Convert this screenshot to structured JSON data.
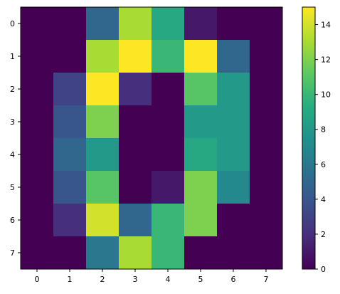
{
  "chart_data": {
    "type": "heatmap",
    "title": "",
    "xlabel": "",
    "ylabel": "",
    "x": [
      0,
      1,
      2,
      3,
      4,
      5,
      6,
      7
    ],
    "y": [
      0,
      1,
      2,
      3,
      4,
      5,
      6,
      7
    ],
    "values": [
      [
        0,
        0,
        5,
        13,
        9,
        1,
        0,
        0
      ],
      [
        0,
        0,
        13,
        15,
        10,
        15,
        5,
        0
      ],
      [
        0,
        3,
        15,
        2,
        0,
        11,
        8,
        0
      ],
      [
        0,
        4,
        12,
        0,
        0,
        8,
        8,
        0
      ],
      [
        0,
        5,
        8,
        0,
        0,
        9,
        8,
        0
      ],
      [
        0,
        4,
        11,
        0,
        1,
        12,
        7,
        0
      ],
      [
        0,
        2,
        14,
        5,
        10,
        12,
        0,
        0
      ],
      [
        0,
        0,
        6,
        13,
        10,
        0,
        0,
        0
      ]
    ],
    "colormap": "viridis",
    "vmin": 0,
    "vmax": 15,
    "colorbar": {
      "ticks": [
        0,
        2,
        4,
        6,
        8,
        10,
        12,
        14
      ]
    }
  }
}
